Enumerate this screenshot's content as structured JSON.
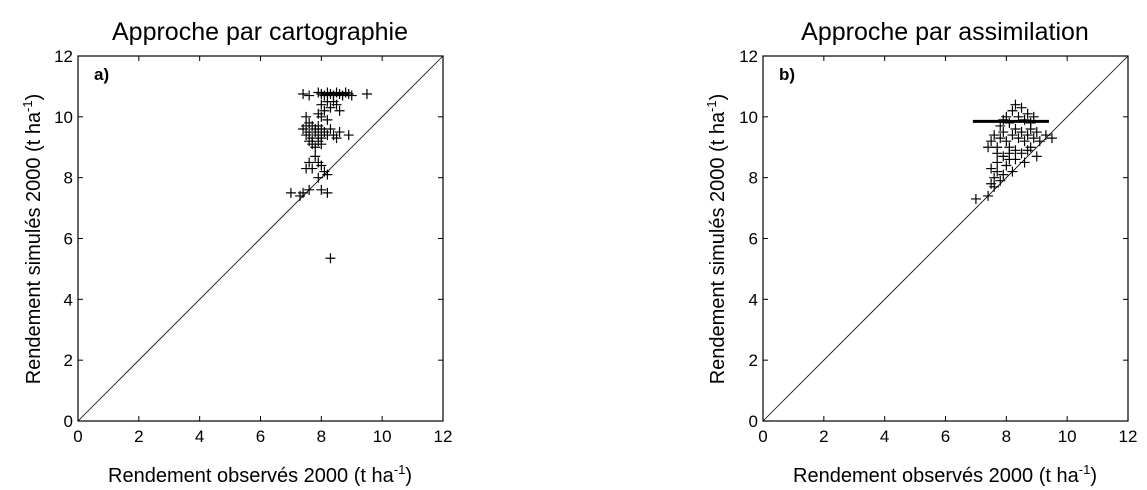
{
  "chart_data": [
    {
      "type": "scatter",
      "title": "Approche par cartographie",
      "panel_label": "a)",
      "xlabel": "Rendement observés 2000 (t ha",
      "xlabel_sup": "-1",
      "xlabel_end": ")",
      "ylabel": "Rendement simulés 2000 (t ha",
      "ylabel_sup": "-1",
      "ylabel_end": ")",
      "xlim": [
        0,
        12
      ],
      "ylim": [
        0,
        12
      ],
      "xticks": [
        0,
        2,
        4,
        6,
        8,
        10,
        12
      ],
      "yticks": [
        0,
        2,
        4,
        6,
        8,
        10,
        12
      ],
      "reference_line": "1:1",
      "marker": "+",
      "hline": {
        "y": 10.75,
        "x": [
          8.0,
          8.9
        ]
      },
      "points": [
        [
          7.4,
          10.75
        ],
        [
          7.6,
          10.7
        ],
        [
          7.9,
          10.8
        ],
        [
          8.0,
          10.75
        ],
        [
          8.1,
          10.7
        ],
        [
          8.2,
          10.8
        ],
        [
          8.3,
          10.75
        ],
        [
          8.4,
          10.7
        ],
        [
          8.5,
          10.8
        ],
        [
          8.6,
          10.75
        ],
        [
          8.7,
          10.7
        ],
        [
          8.8,
          10.8
        ],
        [
          8.9,
          10.75
        ],
        [
          9.0,
          10.7
        ],
        [
          9.5,
          10.75
        ],
        [
          8.0,
          10.4
        ],
        [
          8.2,
          10.5
        ],
        [
          8.1,
          10.2
        ],
        [
          8.3,
          10.3
        ],
        [
          8.0,
          10.0
        ],
        [
          8.2,
          9.9
        ],
        [
          7.9,
          10.1
        ],
        [
          8.4,
          10.5
        ],
        [
          8.5,
          10.4
        ],
        [
          8.6,
          10.2
        ],
        [
          7.5,
          10.0
        ],
        [
          7.6,
          9.8
        ],
        [
          7.7,
          9.7
        ],
        [
          7.8,
          9.5
        ],
        [
          7.9,
          9.4
        ],
        [
          8.0,
          9.6
        ],
        [
          7.7,
          9.3
        ],
        [
          7.8,
          9.6
        ],
        [
          7.6,
          9.5
        ],
        [
          7.9,
          9.2
        ],
        [
          8.0,
          9.3
        ],
        [
          8.1,
          9.5
        ],
        [
          7.7,
          9.1
        ],
        [
          7.8,
          9.0
        ],
        [
          7.6,
          9.2
        ],
        [
          7.5,
          9.4
        ],
        [
          7.9,
          9.7
        ],
        [
          8.0,
          9.1
        ],
        [
          8.2,
          9.4
        ],
        [
          8.3,
          9.6
        ],
        [
          8.4,
          9.4
        ],
        [
          8.5,
          9.3
        ],
        [
          8.6,
          9.5
        ],
        [
          8.9,
          9.4
        ],
        [
          7.4,
          9.6
        ],
        [
          7.5,
          9.7
        ],
        [
          7.8,
          8.7
        ],
        [
          7.9,
          8.5
        ],
        [
          8.0,
          8.4
        ],
        [
          7.7,
          8.3
        ],
        [
          8.1,
          8.2
        ],
        [
          7.5,
          8.3
        ],
        [
          7.6,
          8.5
        ],
        [
          8.2,
          8.1
        ],
        [
          7.9,
          8.0
        ],
        [
          7.0,
          7.5
        ],
        [
          7.3,
          7.4
        ],
        [
          7.4,
          7.5
        ],
        [
          7.6,
          7.6
        ],
        [
          8.0,
          7.6
        ],
        [
          8.2,
          7.5
        ],
        [
          8.3,
          5.35
        ]
      ]
    },
    {
      "type": "scatter",
      "title": "Approche par assimilation",
      "panel_label": "b)",
      "xlabel": "Rendement observés 2000 (t ha",
      "xlabel_sup": "-1",
      "xlabel_end": ")",
      "ylabel": "Rendement simulés 2000 (t ha",
      "ylabel_sup": "-1",
      "ylabel_end": ")",
      "xlim": [
        0,
        12
      ],
      "ylim": [
        0,
        12
      ],
      "xticks": [
        0,
        2,
        4,
        6,
        8,
        10,
        12
      ],
      "yticks": [
        0,
        2,
        4,
        6,
        8,
        10,
        12
      ],
      "reference_line": "1:1",
      "marker": "+",
      "hline": {
        "y": 9.85,
        "x": [
          6.9,
          9.4
        ]
      },
      "points": [
        [
          7.0,
          7.3
        ],
        [
          7.4,
          7.4
        ],
        [
          7.5,
          7.8
        ],
        [
          7.6,
          8.0
        ],
        [
          7.7,
          8.2
        ],
        [
          7.5,
          8.3
        ],
        [
          7.8,
          7.9
        ],
        [
          7.9,
          8.1
        ],
        [
          7.6,
          7.7
        ],
        [
          7.7,
          8.5
        ],
        [
          8.0,
          8.4
        ],
        [
          8.2,
          8.2
        ],
        [
          8.3,
          8.6
        ],
        [
          8.1,
          8.8
        ],
        [
          7.4,
          9.0
        ],
        [
          7.5,
          9.2
        ],
        [
          7.6,
          9.4
        ],
        [
          7.7,
          9.0
        ],
        [
          7.8,
          9.3
        ],
        [
          7.9,
          9.5
        ],
        [
          8.0,
          9.2
        ],
        [
          8.1,
          9.0
        ],
        [
          8.2,
          9.4
        ],
        [
          8.3,
          9.6
        ],
        [
          8.4,
          9.3
        ],
        [
          8.5,
          9.5
        ],
        [
          8.6,
          9.2
        ],
        [
          8.7,
          9.4
        ],
        [
          8.8,
          9.6
        ],
        [
          8.9,
          9.3
        ],
        [
          9.0,
          9.5
        ],
        [
          9.1,
          9.2
        ],
        [
          9.3,
          9.4
        ],
        [
          9.5,
          9.3
        ],
        [
          7.8,
          9.7
        ],
        [
          7.9,
          9.9
        ],
        [
          8.0,
          10.0
        ],
        [
          8.1,
          9.8
        ],
        [
          8.2,
          10.2
        ],
        [
          8.3,
          10.4
        ],
        [
          8.4,
          10.0
        ],
        [
          8.5,
          10.3
        ],
        [
          8.6,
          9.9
        ],
        [
          8.7,
          10.1
        ],
        [
          8.8,
          9.8
        ],
        [
          8.9,
          10.0
        ],
        [
          7.7,
          8.8
        ],
        [
          7.9,
          8.7
        ],
        [
          8.1,
          8.6
        ],
        [
          8.3,
          8.9
        ],
        [
          8.5,
          8.8
        ],
        [
          8.7,
          8.9
        ],
        [
          9.0,
          8.7
        ],
        [
          8.6,
          8.5
        ],
        [
          8.8,
          9.0
        ]
      ]
    }
  ]
}
